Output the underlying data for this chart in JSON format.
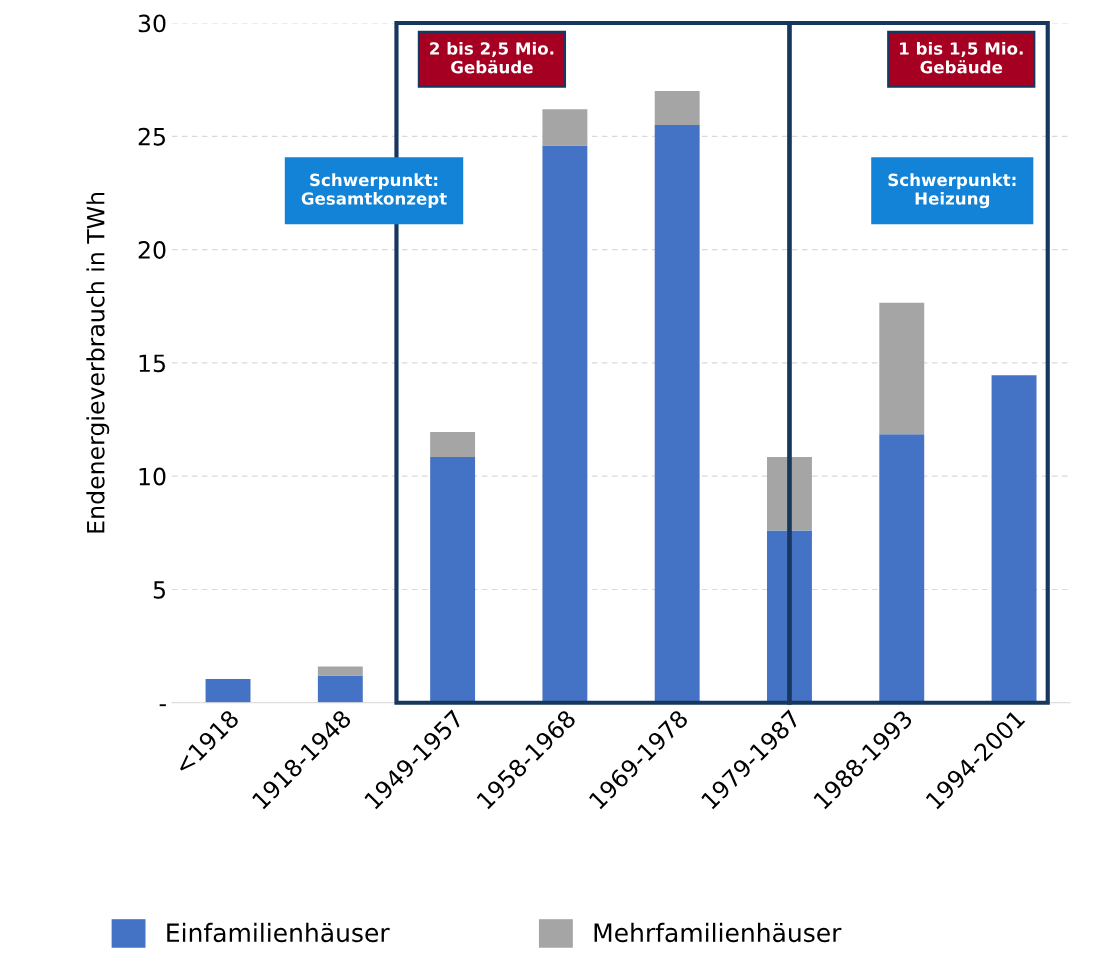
{
  "chart_data": {
    "type": "bar",
    "stacked": true,
    "ylabel": "Endenergieverbrauch in TWh",
    "categories": [
      "<1918",
      "1918-1948",
      "1949-1957",
      "1958-1968",
      "1969-1978",
      "1979-1987",
      "1988-1993",
      "1994-2001"
    ],
    "series": [
      {
        "name": "Einfamilienhäuser",
        "color": "#4472c4",
        "values": [
          1.05,
          1.2,
          10.85,
          24.6,
          25.5,
          7.6,
          11.85,
          14.45
        ]
      },
      {
        "name": "Mehrfamilienhäuser",
        "color": "#a5a5a5",
        "values": [
          0,
          0.4,
          1.1,
          1.6,
          1.5,
          3.25,
          5.8,
          0
        ]
      }
    ],
    "ylim": [
      0,
      30
    ],
    "yticks": [
      {
        "value": 0,
        "label": "-"
      },
      5,
      10,
      15,
      20,
      25,
      30
    ],
    "grid": "y",
    "legend": "bottom",
    "annotations": [
      "2 bis 2,5 Mio.\nGebäude",
      "Schwerpunkt:\nGesamtkonzept",
      "1 bis 1,5 Mio.\nGebäude",
      "Schwerpunkt:\nHeizung"
    ]
  }
}
